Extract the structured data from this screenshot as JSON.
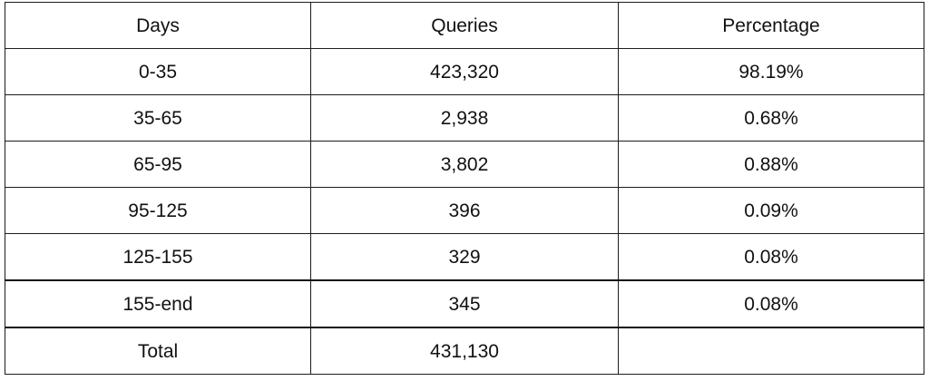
{
  "table": {
    "headers": [
      "Days",
      "Queries",
      "Percentage"
    ],
    "rows": [
      [
        "0-35",
        "423,320",
        "98.19%"
      ],
      [
        "35-65",
        "2,938",
        "0.68%"
      ],
      [
        "65-95",
        "3,802",
        "0.88%"
      ],
      [
        "95-125",
        "396",
        "0.09%"
      ],
      [
        "125-155",
        "329",
        "0.08%"
      ],
      [
        "155-end",
        "345",
        "0.08%"
      ]
    ],
    "total": [
      "Total",
      "431,130",
      ""
    ]
  },
  "chart_data": {
    "type": "table",
    "columns": [
      "Days",
      "Queries",
      "Percentage"
    ],
    "rows": [
      [
        "0-35",
        423320,
        98.19
      ],
      [
        "35-65",
        2938,
        0.68
      ],
      [
        "65-95",
        3802,
        0.88
      ],
      [
        "95-125",
        396,
        0.09
      ],
      [
        "125-155",
        329,
        0.08
      ],
      [
        "155-end",
        345,
        0.08
      ],
      [
        "Total",
        431130,
        null
      ]
    ]
  }
}
